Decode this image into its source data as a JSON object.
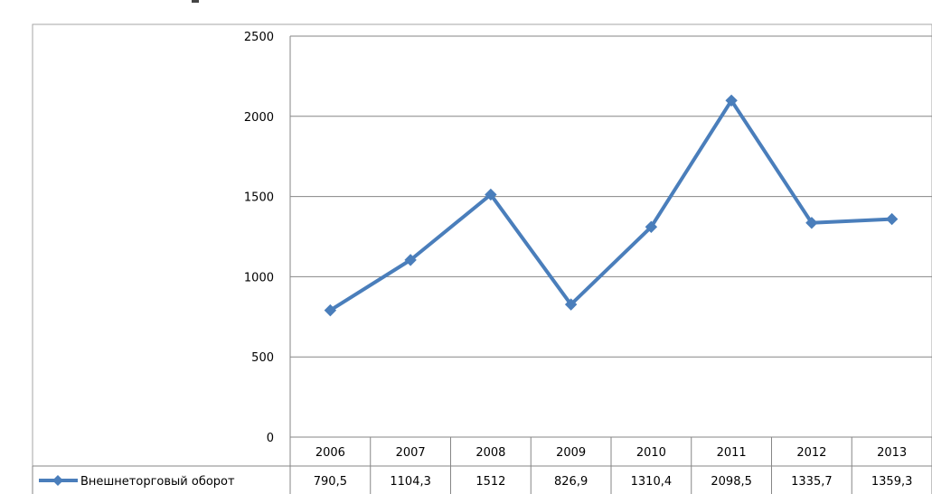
{
  "chart_data": {
    "type": "line",
    "title": "",
    "xlabel": "",
    "ylabel": "",
    "ylim": [
      0,
      2500
    ],
    "yticks": [
      "0",
      "500",
      "1000",
      "1500",
      "2000",
      "2500"
    ],
    "grid": true,
    "legend": "data-table-left",
    "categories": [
      "2006",
      "2007",
      "2008",
      "2009",
      "2010",
      "2011",
      "2012",
      "2013"
    ],
    "series": [
      {
        "name": "Внешнеторговый оборот",
        "color": "#4A7EBB",
        "values": [
          790.5,
          1104.3,
          1512,
          826.9,
          1310.4,
          2098.5,
          1335.7,
          1359.3
        ],
        "value_labels": [
          "790,5",
          "1104,3",
          "1512",
          "826,9",
          "1310,4",
          "2098,5",
          "1335,7",
          "1359,3"
        ]
      }
    ]
  }
}
